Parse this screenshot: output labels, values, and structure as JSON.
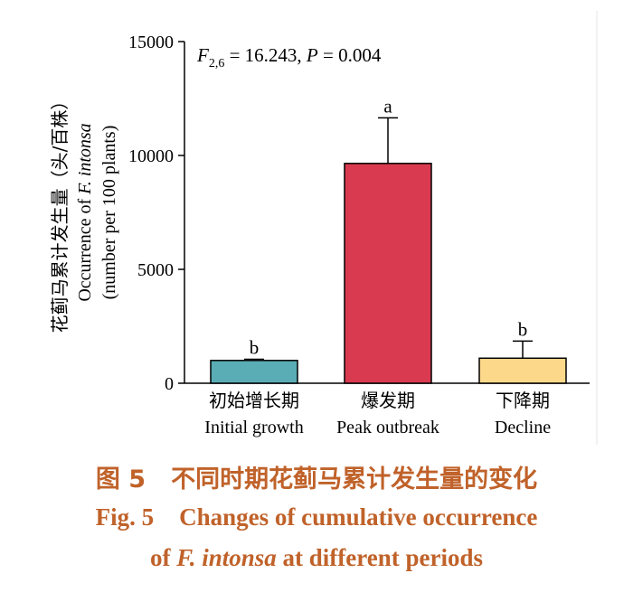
{
  "chart_data": {
    "type": "bar",
    "categories": [
      {
        "cn": "初始增长期",
        "en": "Initial growth"
      },
      {
        "cn": "爆发期",
        "en": "Peak outbreak"
      },
      {
        "cn": "下降期",
        "en": "Decline"
      }
    ],
    "values": [
      1000,
      9650,
      1100
    ],
    "errors": [
      50,
      2000,
      750
    ],
    "significance_letters": [
      "b",
      "a",
      "b"
    ],
    "bar_colors": [
      "#5aadb5",
      "#d93a50",
      "#fcd98a"
    ],
    "ylim": [
      0,
      15000
    ],
    "yticks": [
      "0",
      "5000",
      "10000",
      "15000"
    ],
    "ylabel_cn": "花蓟马累计发生量（头/百株）",
    "ylabel_en_prefix": "Occurrence of ",
    "ylabel_en_species": "F. intonsa",
    "ylabel_en2": "(number per 100 plants)",
    "stat_F": "F",
    "stat_sub": "2,6",
    "stat_eq": " = 16.243,  ",
    "stat_P": "P",
    "stat_p_eq": " = 0.004"
  },
  "caption": {
    "cn_num": "图 5",
    "cn_text": "不同时期花蓟马累计发生量的变化",
    "en_num": "Fig. 5",
    "en_line1": "Changes of cumulative occurrence",
    "en_of": "of ",
    "en_species": "F. intonsa",
    "en_rest": " at different periods"
  }
}
